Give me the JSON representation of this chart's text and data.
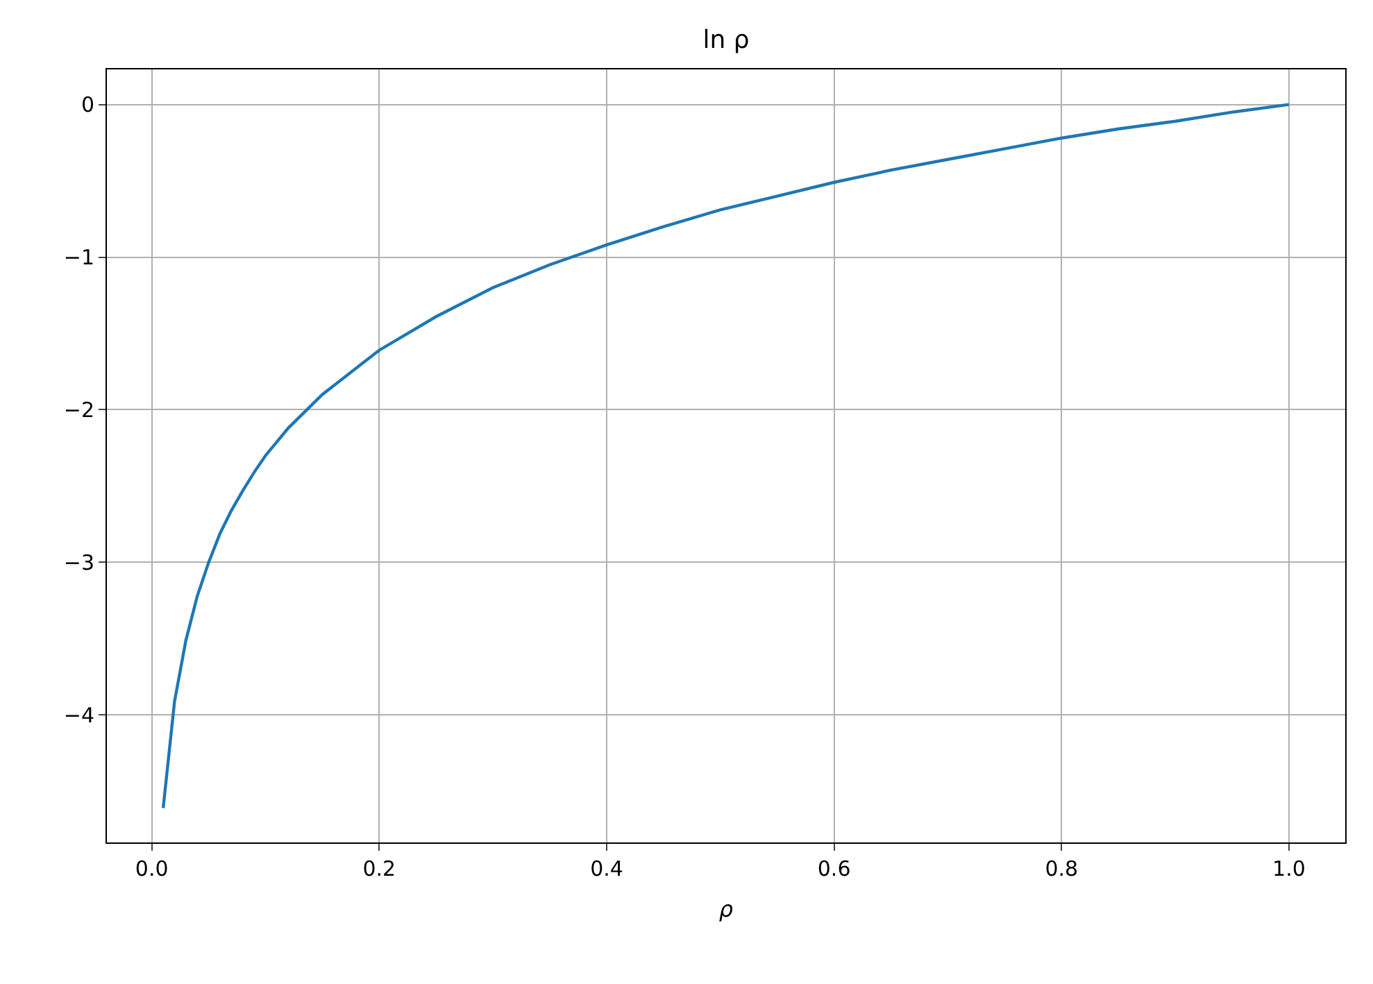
{
  "chart_data": {
    "type": "line",
    "title": "ln ρ",
    "xlabel": "ρ",
    "x": [
      0.01,
      0.02,
      0.03,
      0.04,
      0.05,
      0.06,
      0.07,
      0.08,
      0.09,
      0.1,
      0.12,
      0.15,
      0.2,
      0.25,
      0.3,
      0.35,
      0.4,
      0.45,
      0.5,
      0.55,
      0.6,
      0.65,
      0.7,
      0.75,
      0.8,
      0.85,
      0.9,
      0.95,
      1.0
    ],
    "series": [
      {
        "color": "#1f77b4",
        "values": [
          -4.61,
          -3.91,
          -3.51,
          -3.22,
          -3.0,
          -2.81,
          -2.66,
          -2.53,
          -2.41,
          -2.3,
          -2.12,
          -1.9,
          -1.61,
          -1.39,
          -1.2,
          -1.05,
          -0.92,
          -0.8,
          -0.69,
          -0.6,
          -0.51,
          -0.43,
          -0.36,
          -0.29,
          -0.22,
          -0.16,
          -0.11,
          -0.05,
          0.0
        ]
      }
    ],
    "xlim": [
      -0.0395,
      1.0495
    ],
    "ylim": [
      -4.835,
      0.23
    ],
    "xticks": [
      {
        "value": 0,
        "label": "0.0"
      },
      0.2,
      0.4,
      0.6,
      0.8,
      {
        "value": 1,
        "label": "1.0"
      }
    ],
    "yticks": [
      {
        "value": -4,
        "label": "−4"
      },
      {
        "value": -3,
        "label": "−3"
      },
      {
        "value": -2,
        "label": "−2"
      },
      {
        "value": -1,
        "label": "−1"
      },
      0
    ],
    "grid": true,
    "marker": "none",
    "line_style": "solid"
  }
}
